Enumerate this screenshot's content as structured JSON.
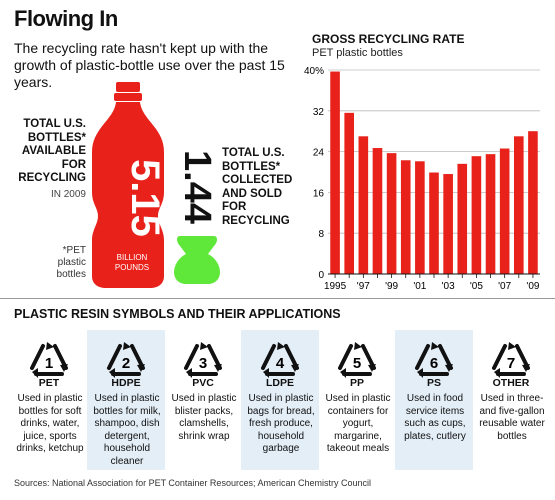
{
  "headline": "Flowing In",
  "dek": "The recycling rate hasn't kept up with the growth of plastic-bottle use over the past 15 years.",
  "bottles": {
    "available": {
      "value": "5.15",
      "unit": "BILLION POUNDS",
      "label_lines": [
        "TOTAL U.S.",
        "BOTTLES*",
        "AVAILABLE",
        "FOR",
        "RECYCLING"
      ],
      "year": "IN 2009"
    },
    "collected": {
      "value": "1.44",
      "label_lines": [
        "TOTAL U.S.",
        "BOTTLES*",
        "COLLECTED",
        "AND SOLD",
        "FOR",
        "RECYCLING"
      ]
    },
    "footnote_lines": [
      "*PET",
      "plastic",
      "bottles"
    ]
  },
  "chart_data": {
    "type": "bar",
    "title": "GROSS RECYCLING RATE",
    "subtitle": "PET plastic bottles",
    "categories": [
      "1995",
      "1996",
      "1997",
      "1998",
      "1999",
      "2000",
      "2001",
      "2002",
      "2003",
      "2004",
      "2005",
      "2006",
      "2007",
      "2008",
      "2009"
    ],
    "values": [
      39.7,
      31.6,
      27.0,
      24.7,
      23.7,
      22.3,
      22.1,
      19.9,
      19.6,
      21.6,
      23.1,
      23.5,
      24.6,
      27.0,
      28.0
    ],
    "x_tick_labels": [
      "1995",
      "",
      "'97",
      "",
      "'99",
      "",
      "'01",
      "",
      "'03",
      "",
      "'05",
      "",
      "'07",
      "",
      "'09"
    ],
    "ylim": [
      0,
      40
    ],
    "yticks": [
      0,
      8,
      16,
      24,
      32,
      40
    ],
    "ytick_labels": [
      "0",
      "8",
      "16",
      "24",
      "32",
      "40%"
    ],
    "grid": true,
    "bar_color": "#e8211a"
  },
  "section_title": "PLASTIC RESIN SYMBOLS AND THEIR APPLICATIONS",
  "resins": [
    {
      "number": "1",
      "abbr": "PET",
      "desc": "Used in plastic bottles for soft drinks, water, juice, sports drinks, ketchup",
      "shaded": false
    },
    {
      "number": "2",
      "abbr": "HDPE",
      "desc": "Used in plastic bottles for milk, shampoo, dish detergent, household cleaner",
      "shaded": true
    },
    {
      "number": "3",
      "abbr": "PVC",
      "desc": "Used in plastic blister packs, clamshells, shrink wrap",
      "shaded": false
    },
    {
      "number": "4",
      "abbr": "LDPE",
      "desc": "Used in plastic bags for bread, fresh produce, household garbage",
      "shaded": true
    },
    {
      "number": "5",
      "abbr": "PP",
      "desc": "Used in plastic containers for yogurt, margarine, takeout meals",
      "shaded": false
    },
    {
      "number": "6",
      "abbr": "PS",
      "desc": "Used in food service items such as cups, plates, cutlery",
      "shaded": true
    },
    {
      "number": "7",
      "abbr": "OTHER",
      "desc": "Used in three-and five-gallon reusable water bottles",
      "shaded": false
    }
  ],
  "sources": "Sources: National Association for PET Container Resources; American Chemistry Council",
  "colors": {
    "red": "#e8211a",
    "green": "#5fe83a",
    "shade": "#e3eef7"
  }
}
